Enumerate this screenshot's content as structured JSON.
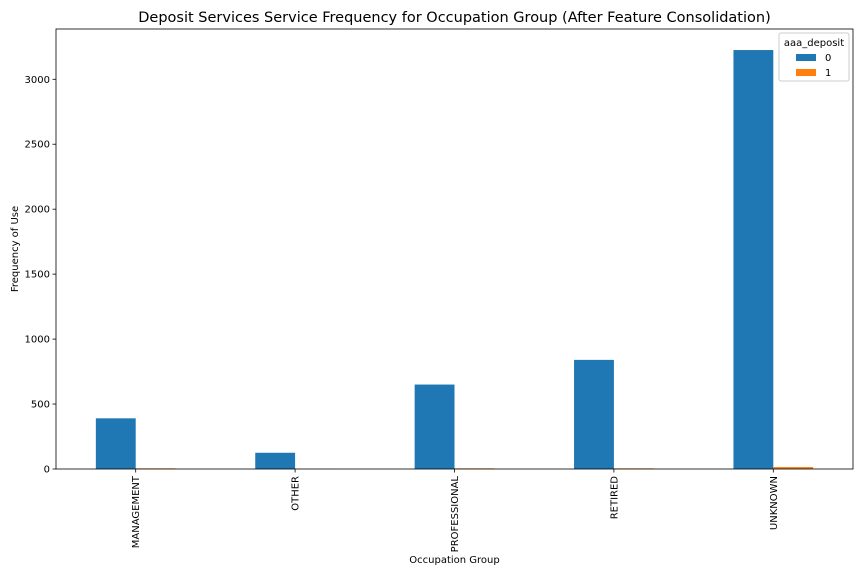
{
  "chart_data": {
    "type": "bar",
    "title": "Deposit Services Service Frequency for Occupation Group (After Feature Consolidation)",
    "xlabel": "Occupation Group",
    "ylabel": "Frequency of Use",
    "categories": [
      "MANAGEMENT",
      "OTHER",
      "PROFESSIONAL",
      "RETIRED",
      "UNKNOWN"
    ],
    "series": [
      {
        "name": "0",
        "values": [
          390,
          125,
          650,
          840,
          3225
        ],
        "color": "#1f77b4"
      },
      {
        "name": "1",
        "values": [
          5,
          1,
          5,
          5,
          15
        ],
        "color": "#ff7f0e"
      }
    ],
    "ylim": [
      0,
      3387
    ],
    "yticks": [
      0,
      500,
      1000,
      1500,
      2000,
      2500,
      3000
    ],
    "legend": {
      "title": "aaa_deposit",
      "placement": "upper-right"
    },
    "grid": false
  }
}
